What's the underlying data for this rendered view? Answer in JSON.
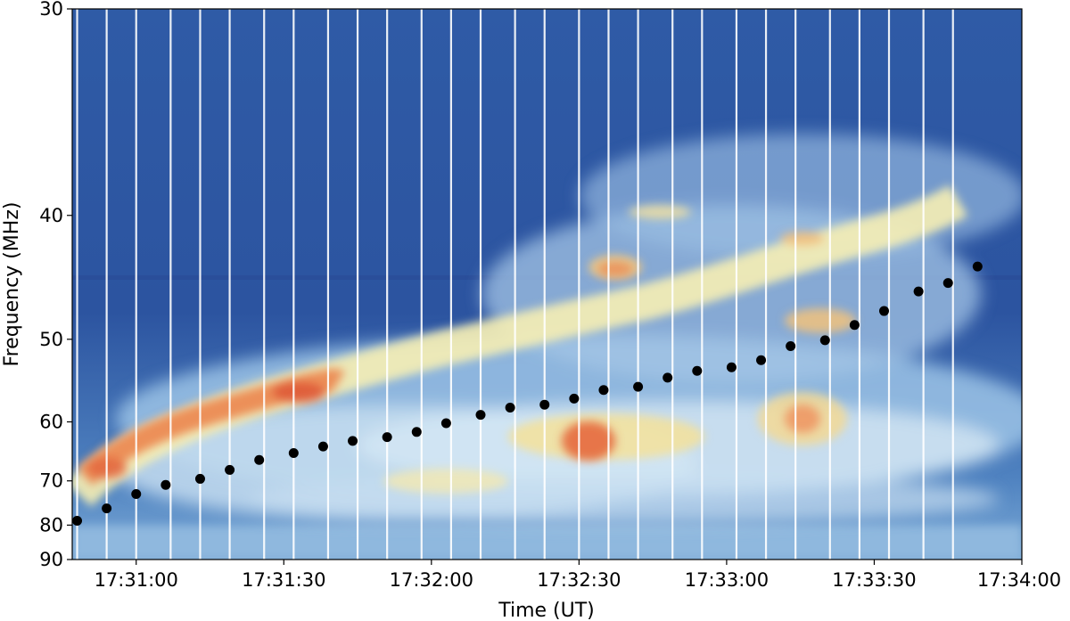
{
  "chart_data": {
    "type": "scatter",
    "background": "radio dynamic spectrum (intensity heatmap, blue-white-yellow-red colormap)",
    "xlabel": "Time (UT)",
    "ylabel": "Frequency (MHz)",
    "x_ticks": [
      "17:31:00",
      "17:31:30",
      "17:32:00",
      "17:32:30",
      "17:33:00",
      "17:33:30",
      "17:34:00"
    ],
    "y_ticks": [
      30,
      40,
      50,
      60,
      70,
      80,
      90
    ],
    "ylim": [
      30,
      90
    ],
    "xlim": [
      "17:30:47",
      "17:34:00"
    ],
    "y_scale": "reciprocal",
    "y_inverted": true,
    "vertical_lines": [
      "17:30:48",
      "17:30:54",
      "17:31:00",
      "17:31:07",
      "17:31:13",
      "17:31:19",
      "17:31:26",
      "17:31:32",
      "17:31:39",
      "17:31:45",
      "17:31:51",
      "17:31:58",
      "17:32:04",
      "17:32:10",
      "17:32:17",
      "17:32:23",
      "17:32:30",
      "17:32:36",
      "17:32:42",
      "17:32:49",
      "17:32:55",
      "17:33:02",
      "17:33:08",
      "17:33:14",
      "17:33:21",
      "17:33:27",
      "17:33:33",
      "17:33:40",
      "17:33:46"
    ],
    "points": [
      {
        "x": "17:30:48",
        "y": 78.9
      },
      {
        "x": "17:30:54",
        "y": 75.9
      },
      {
        "x": "17:31:00",
        "y": 72.7
      },
      {
        "x": "17:31:06",
        "y": 70.8
      },
      {
        "x": "17:31:13",
        "y": 69.6
      },
      {
        "x": "17:31:19",
        "y": 67.9
      },
      {
        "x": "17:31:25",
        "y": 66.1
      },
      {
        "x": "17:31:32",
        "y": 64.9
      },
      {
        "x": "17:31:38",
        "y": 63.8
      },
      {
        "x": "17:31:44",
        "y": 62.9
      },
      {
        "x": "17:31:51",
        "y": 62.3
      },
      {
        "x": "17:31:57",
        "y": 61.5
      },
      {
        "x": "17:32:03",
        "y": 60.2
      },
      {
        "x": "17:32:10",
        "y": 59.0
      },
      {
        "x": "17:32:16",
        "y": 58.0
      },
      {
        "x": "17:32:23",
        "y": 57.6
      },
      {
        "x": "17:32:29",
        "y": 56.8
      },
      {
        "x": "17:32:35",
        "y": 55.7
      },
      {
        "x": "17:32:42",
        "y": 55.3
      },
      {
        "x": "17:32:48",
        "y": 54.2
      },
      {
        "x": "17:32:54",
        "y": 53.4
      },
      {
        "x": "17:33:01",
        "y": 53.0
      },
      {
        "x": "17:33:07",
        "y": 52.2
      },
      {
        "x": "17:33:13",
        "y": 50.7
      },
      {
        "x": "17:33:20",
        "y": 50.1
      },
      {
        "x": "17:33:26",
        "y": 48.6
      },
      {
        "x": "17:33:32",
        "y": 47.3
      },
      {
        "x": "17:33:39",
        "y": 45.6
      },
      {
        "x": "17:33:45",
        "y": 44.9
      },
      {
        "x": "17:33:51",
        "y": 43.6
      }
    ],
    "colors": {
      "background_base": "#2e58a4",
      "point": "#000000",
      "vertical_line": "#ffffff"
    }
  }
}
